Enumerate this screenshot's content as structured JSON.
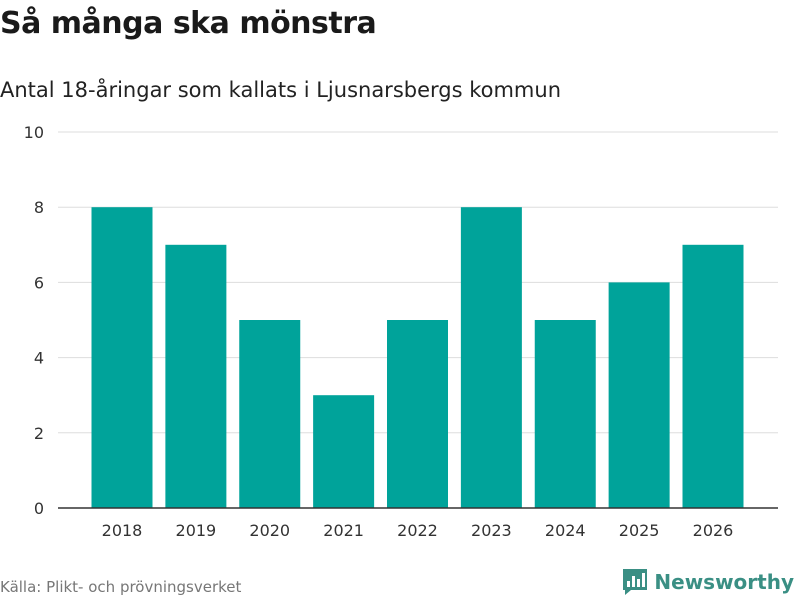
{
  "title": "Så många ska mönstra",
  "subtitle": "Antal 18-åringar som kallats i Ljusnarsbergs kommun",
  "source": "Källa: Plikt- och prövningsverket",
  "logo": {
    "text": "Newsworthy",
    "icon": "newsworthy-logo-icon"
  },
  "colors": {
    "bar": "#00a39a",
    "logo": "#3a8f84",
    "grid": "#dddddd",
    "axis": "#333333"
  },
  "chart_data": {
    "type": "bar",
    "title": "Så många ska mönstra",
    "subtitle": "Antal 18-åringar som kallats i Ljusnarsbergs kommun",
    "categories": [
      "2018",
      "2019",
      "2020",
      "2021",
      "2022",
      "2023",
      "2024",
      "2025",
      "2026"
    ],
    "values": [
      8,
      7,
      5,
      3,
      5,
      8,
      5,
      6,
      7
    ],
    "yticks": [
      0,
      2,
      4,
      6,
      8,
      10
    ],
    "ylim": [
      0,
      10
    ],
    "xlabel": "",
    "ylabel": "",
    "grid": true
  }
}
